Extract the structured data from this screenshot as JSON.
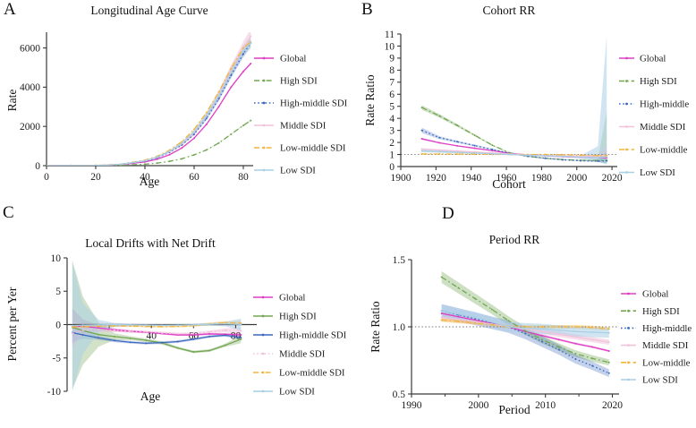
{
  "figure": {
    "background": "#ffffff",
    "text_color": "#1c1c1c",
    "axis_color": "#3a3a3a"
  },
  "chart_data": [
    {
      "panel": "A",
      "letter": "A",
      "type": "line",
      "title": "Longitudinal Age Curve",
      "xlabel": "Age",
      "ylabel": "Rate",
      "xlim": [
        0,
        84
      ],
      "ylim": [
        0,
        6800
      ],
      "xticks": [
        0,
        20,
        40,
        60,
        80
      ],
      "yticks": [
        0,
        2000,
        4000,
        6000
      ],
      "ytick_labels": [
        "0",
        "2000",
        "4000",
        "6000"
      ],
      "legend_position": "right",
      "legend": [
        "Global",
        "High SDI",
        "High-middle SDI",
        "Middle SDI",
        "Low-middle SDI",
        "Low SDI"
      ],
      "x": [
        0,
        10,
        20,
        30,
        40,
        45,
        50,
        55,
        60,
        65,
        70,
        75,
        80,
        83
      ],
      "series": [
        {
          "name": "Global",
          "color": "#DE3FC4",
          "dash": "solid",
          "band_rel": 0.012,
          "y": [
            2,
            3,
            10,
            50,
            190,
            330,
            560,
            900,
            1400,
            2100,
            3000,
            4000,
            4800,
            5200
          ]
        },
        {
          "name": "High SDI",
          "color": "#73A653",
          "dash": "dashdot",
          "band_rel": 0.02,
          "y": [
            1,
            2,
            5,
            20,
            75,
            130,
            220,
            350,
            550,
            800,
            1150,
            1600,
            2050,
            2300
          ]
        },
        {
          "name": "High-middle SDI",
          "color": "#3C68BE",
          "dash": "dotted",
          "band_rel": 0.03,
          "band_alpha": 0.3,
          "y": [
            2,
            3,
            12,
            60,
            230,
            400,
            680,
            1050,
            1600,
            2400,
            3400,
            4600,
            5700,
            6250
          ]
        },
        {
          "name": "Middle SDI",
          "color": "#F1C2DA",
          "dash": "solid",
          "band_rel": 0.055,
          "band_alpha": 0.55,
          "y": [
            2,
            3,
            13,
            65,
            250,
            430,
            720,
            1120,
            1700,
            2550,
            3600,
            4850,
            6000,
            6600
          ]
        },
        {
          "name": "Low-middle SDI",
          "color": "#F2B53D",
          "dash": "dashdot",
          "band_rel": 0.02,
          "y": [
            3,
            5,
            16,
            75,
            280,
            480,
            790,
            1220,
            1850,
            2700,
            3750,
            4950,
            6000,
            6300
          ]
        },
        {
          "name": "Low SDI",
          "color": "#A9CFE5",
          "dash": "solid",
          "band_rel": 0.045,
          "band_alpha": 0.5,
          "y": [
            2,
            3,
            13,
            65,
            250,
            440,
            730,
            1140,
            1720,
            2550,
            3550,
            4750,
            5850,
            6250
          ]
        }
      ]
    },
    {
      "panel": "B",
      "letter": "B",
      "type": "line",
      "title": "Cohort RR",
      "xlabel": "Cohort",
      "ylabel": "Rate Ratio",
      "xlim": [
        1900,
        2023
      ],
      "ylim": [
        0,
        11
      ],
      "ref_y": 1,
      "xticks": [
        1900,
        1920,
        1940,
        1960,
        1980,
        2000,
        2020
      ],
      "yticks": [
        0,
        1,
        2,
        3,
        4,
        5,
        6,
        7,
        8,
        9,
        10,
        11
      ],
      "ytick_labels": [
        "0",
        "1",
        "2",
        "3",
        "4",
        "5",
        "6",
        "7",
        "8",
        "9",
        "10",
        "11"
      ],
      "legend_position": "right",
      "legend": [
        "Global",
        "High SDI",
        "High-middle",
        "Middle SDI",
        "Low-middle",
        "Low SDI"
      ],
      "x": [
        1912,
        1922,
        1932,
        1942,
        1952,
        1962,
        1972,
        1982,
        1992,
        2002,
        2012,
        2017
      ],
      "series": [
        {
          "name": "Global",
          "color": "#DE3FC4",
          "dash": "solid",
          "y": [
            2.3,
            1.97,
            1.72,
            1.52,
            1.32,
            1.1,
            0.96,
            0.88,
            0.82,
            0.77,
            0.72,
            0.73
          ],
          "band_upper": [
            2.38,
            2.02,
            1.76,
            1.56,
            1.35,
            1.13,
            0.99,
            0.91,
            0.85,
            0.8,
            0.77,
            0.88
          ],
          "band_lower": [
            2.22,
            1.92,
            1.68,
            1.48,
            1.29,
            1.07,
            0.93,
            0.85,
            0.79,
            0.74,
            0.66,
            0.6
          ]
        },
        {
          "name": "High SDI",
          "color": "#73A653",
          "dash": "dashdot",
          "band_alpha": 0.35,
          "y": [
            4.9,
            4.2,
            3.42,
            2.6,
            1.77,
            1.13,
            0.85,
            0.69,
            0.58,
            0.52,
            0.5,
            0.52
          ],
          "band_upper": [
            5.08,
            4.35,
            3.53,
            2.68,
            1.82,
            1.17,
            0.89,
            0.72,
            0.61,
            0.56,
            0.62,
            4.6
          ],
          "band_lower": [
            4.72,
            4.05,
            3.31,
            2.52,
            1.72,
            1.09,
            0.81,
            0.66,
            0.55,
            0.48,
            0.42,
            0.28
          ]
        },
        {
          "name": "High-middle",
          "color": "#3C68BE",
          "dash": "dotted",
          "band_alpha": 0.28,
          "y": [
            3.0,
            2.4,
            2.06,
            1.74,
            1.42,
            1.1,
            0.86,
            0.69,
            0.56,
            0.48,
            0.45,
            0.47
          ],
          "band_upper": [
            3.22,
            2.52,
            2.15,
            1.81,
            1.47,
            1.13,
            0.9,
            0.72,
            0.59,
            0.51,
            0.53,
            1.25
          ],
          "band_lower": [
            2.78,
            2.28,
            1.97,
            1.67,
            1.37,
            1.07,
            0.82,
            0.66,
            0.53,
            0.45,
            0.37,
            0.25
          ]
        },
        {
          "name": "Middle SDI",
          "color": "#F1C2DA",
          "dash": "solid",
          "band_alpha": 0.5,
          "y": [
            1.45,
            1.37,
            1.29,
            1.21,
            1.13,
            1.05,
            0.98,
            0.92,
            0.88,
            0.85,
            0.88,
            0.95
          ],
          "band_upper": [
            1.52,
            1.42,
            1.33,
            1.25,
            1.16,
            1.08,
            1.01,
            0.95,
            0.9,
            0.88,
            0.98,
            1.9
          ],
          "band_lower": [
            1.38,
            1.32,
            1.25,
            1.17,
            1.1,
            1.02,
            0.95,
            0.89,
            0.86,
            0.82,
            0.78,
            0.58
          ]
        },
        {
          "name": "Low-middle",
          "color": "#F2B53D",
          "dash": "dashdot",
          "band_alpha": 0.35,
          "y": [
            1.05,
            1.04,
            1.03,
            1.02,
            1.01,
            1.0,
            1.0,
            1.0,
            0.98,
            0.95,
            0.91,
            0.9
          ],
          "band_upper": [
            1.09,
            1.07,
            1.06,
            1.05,
            1.03,
            1.02,
            1.02,
            1.02,
            1.0,
            0.98,
            0.97,
            1.1
          ],
          "band_lower": [
            1.01,
            1.01,
            1.0,
            0.99,
            0.99,
            0.98,
            0.98,
            0.98,
            0.96,
            0.92,
            0.85,
            0.72
          ]
        },
        {
          "name": "Low SDI",
          "color": "#A9CFE5",
          "dash": "solid",
          "band_alpha": 0.55,
          "y": [
            1.3,
            1.24,
            1.18,
            1.12,
            1.06,
            1.0,
            0.94,
            0.89,
            0.84,
            0.78,
            0.72,
            0.8
          ],
          "band_upper": [
            1.42,
            1.34,
            1.26,
            1.18,
            1.11,
            1.05,
            0.98,
            0.93,
            0.89,
            0.87,
            1.7,
            10.9
          ],
          "band_lower": [
            1.18,
            1.14,
            1.1,
            1.06,
            1.01,
            0.95,
            0.9,
            0.85,
            0.79,
            0.68,
            0.4,
            0.18
          ]
        }
      ]
    },
    {
      "panel": "C",
      "letter": "C",
      "type": "line",
      "title": "Local Drifts with Net Drift",
      "xlabel": "Age",
      "ylabel": "Percent per Yer",
      "xlim": [
        0,
        90
      ],
      "ylim": [
        -10,
        10
      ],
      "x_axis_at": 0,
      "xticks": [
        20,
        40,
        60,
        80
      ],
      "xtick_labels": [
        "",
        "40",
        "60",
        "80"
      ],
      "yticks": [
        -10,
        -5,
        0,
        5,
        10
      ],
      "ytick_labels": [
        "-10",
        "-5",
        "0",
        "5",
        "10"
      ],
      "legend_position": "right",
      "legend": [
        "Global",
        "High SDI",
        "High-middle SDI",
        "Middle SDI",
        "Low-middle SDI",
        "Low SDI"
      ],
      "x": [
        2.5,
        7.5,
        15,
        22.5,
        30,
        37.5,
        45,
        52.5,
        60,
        67.5,
        75,
        82.5
      ],
      "series": [
        {
          "name": "Global",
          "color": "#DE3FC4",
          "dash": "solid",
          "band_alpha": 0.3,
          "y": [
            -0.2,
            -0.25,
            -0.5,
            -0.8,
            -1.0,
            -1.15,
            -1.35,
            -1.55,
            -1.55,
            -1.4,
            -1.45,
            -1.55
          ],
          "band_upper": [
            2.4,
            0.8,
            -0.1,
            -0.55,
            -0.8,
            -1.0,
            -1.2,
            -1.4,
            -1.4,
            -1.25,
            -1.3,
            -1.25
          ],
          "band_lower": [
            -3.0,
            -1.4,
            -0.9,
            -1.05,
            -1.2,
            -1.3,
            -1.5,
            -1.7,
            -1.7,
            -1.55,
            -1.6,
            -1.85
          ]
        },
        {
          "name": "High SDI",
          "color": "#73A653",
          "dash": "solid",
          "band_alpha": 0.32,
          "y": [
            -0.4,
            -0.9,
            -1.5,
            -1.8,
            -2.05,
            -2.35,
            -2.75,
            -3.5,
            -4.1,
            -3.9,
            -3.1,
            -2.2
          ],
          "band_upper": [
            9.6,
            4.2,
            0.3,
            -1.3,
            -1.75,
            -2.1,
            -2.5,
            -3.3,
            -3.9,
            -3.7,
            -2.85,
            -1.6
          ],
          "band_lower": [
            -9.7,
            -6.0,
            -3.3,
            -2.3,
            -2.35,
            -2.6,
            -3.0,
            -3.7,
            -4.3,
            -4.1,
            -3.35,
            -2.8
          ]
        },
        {
          "name": "High-middle SDI",
          "color": "#3C68BE",
          "dash": "solid",
          "band_alpha": 0.25,
          "y": [
            -1.2,
            -1.55,
            -2.0,
            -2.4,
            -2.65,
            -2.8,
            -2.7,
            -2.55,
            -2.2,
            -1.8,
            -1.6,
            -1.95
          ],
          "band_upper": [
            -0.2,
            -1.0,
            -1.7,
            -2.15,
            -2.45,
            -2.6,
            -2.5,
            -2.35,
            -2.0,
            -1.6,
            -1.4,
            -1.6
          ],
          "band_lower": [
            -2.6,
            -2.1,
            -2.3,
            -2.65,
            -2.85,
            -3.0,
            -2.9,
            -2.75,
            -2.4,
            -2.0,
            -1.8,
            -2.3
          ]
        },
        {
          "name": "Middle SDI",
          "color": "#F1C2DA",
          "dash": "dotted",
          "band_alpha": 0.5,
          "y": [
            -1.3,
            -0.85,
            -0.75,
            -0.85,
            -1.0,
            -1.1,
            -1.25,
            -1.4,
            -1.35,
            -1.1,
            -0.85,
            -0.95
          ],
          "band_upper": [
            0.6,
            -0.2,
            -0.4,
            -0.6,
            -0.8,
            -0.9,
            -1.05,
            -1.2,
            -1.15,
            -0.9,
            -0.55,
            -0.4
          ],
          "band_lower": [
            -3.4,
            -1.6,
            -1.1,
            -1.1,
            -1.2,
            -1.3,
            -1.45,
            -1.6,
            -1.55,
            -1.3,
            -1.15,
            -1.5
          ]
        },
        {
          "name": "Low-middle SDI",
          "color": "#F2B53D",
          "dash": "dashdot",
          "band_alpha": 0.4,
          "y": [
            -0.35,
            -0.3,
            -0.25,
            -0.2,
            -0.22,
            -0.27,
            -0.3,
            -0.26,
            -0.15,
            0.1,
            0.28,
            0.2
          ],
          "band_upper": [
            0.05,
            -0.1,
            -0.08,
            -0.06,
            -0.08,
            -0.12,
            -0.16,
            -0.1,
            0.03,
            0.3,
            0.52,
            0.55
          ],
          "band_lower": [
            -0.75,
            -0.5,
            -0.42,
            -0.34,
            -0.36,
            -0.42,
            -0.44,
            -0.42,
            -0.33,
            -0.1,
            0.04,
            -0.15
          ]
        },
        {
          "name": "Low SDI",
          "color": "#A9CFE5",
          "dash": "solid",
          "band_alpha": 0.55,
          "y": [
            -0.15,
            -0.08,
            -0.03,
            0,
            -0.03,
            -0.07,
            -0.1,
            -0.08,
            -0.03,
            0.04,
            0.1,
            0.02
          ],
          "band_upper": [
            9.3,
            3.2,
            0.7,
            0.25,
            0.12,
            0.06,
            0.04,
            0.05,
            0.1,
            0.2,
            0.42,
            0.9
          ],
          "band_lower": [
            -10,
            -4.4,
            -1.1,
            -0.35,
            -0.22,
            -0.22,
            -0.26,
            -0.24,
            -0.18,
            -0.16,
            -0.25,
            -0.9
          ]
        }
      ]
    },
    {
      "panel": "D",
      "letter": "D",
      "type": "line",
      "title": "Period RR",
      "xlabel": "Period",
      "ylabel": "Rate Ratio",
      "xlim": [
        1990,
        2021
      ],
      "ylim": [
        0.5,
        1.5
      ],
      "ref_y": 1,
      "xticks": [
        1990,
        2000,
        2010,
        2020
      ],
      "minor_xticks": [
        1995,
        2005,
        2015
      ],
      "yticks": [
        0.5,
        1.0,
        1.5
      ],
      "ytick_labels": [
        "0.5",
        "1.0",
        "1.5"
      ],
      "legend_position": "right",
      "legend": [
        "Global",
        "High SDI",
        "High-middle",
        "Middle SDI",
        "Low-middle",
        "Low SDI"
      ],
      "x": [
        1994.5,
        1997,
        1999.5,
        2002,
        2004.5,
        2007,
        2009.5,
        2012,
        2014.5,
        2017,
        2019.5
      ],
      "series": [
        {
          "name": "Global",
          "color": "#DE3FC4",
          "dash": "solid",
          "band_rel": 0.01,
          "y": [
            1.1,
            1.075,
            1.05,
            1.025,
            1.0,
            0.965,
            0.935,
            0.905,
            0.875,
            0.85,
            0.82
          ]
        },
        {
          "name": "High SDI",
          "color": "#73A653",
          "dash": "dashdot",
          "band_rel": 0.032,
          "band_alpha": 0.35,
          "y": [
            1.37,
            1.29,
            1.21,
            1.13,
            1.045,
            0.97,
            0.905,
            0.85,
            0.8,
            0.765,
            0.735
          ]
        },
        {
          "name": "High-middle",
          "color": "#3C68BE",
          "dash": "dotted",
          "band_rel": 0.045,
          "band_alpha": 0.3,
          "y": [
            1.12,
            1.09,
            1.06,
            1.03,
            1.0,
            0.95,
            0.89,
            0.83,
            0.76,
            0.71,
            0.655
          ]
        },
        {
          "name": "Middle SDI",
          "color": "#F1C2DA",
          "dash": "solid",
          "band_rel": 0.022,
          "band_alpha": 0.55,
          "y": [
            1.07,
            1.055,
            1.04,
            1.02,
            1.0,
            0.985,
            0.965,
            0.945,
            0.925,
            0.905,
            0.885
          ]
        },
        {
          "name": "Low-middle",
          "color": "#F2B53D",
          "dash": "dashdot",
          "band_rel": 0.013,
          "band_alpha": 0.45,
          "y": [
            1.05,
            1.04,
            1.03,
            1.015,
            1.0,
            1.0,
            1.0,
            1.0,
            1.0,
            0.995,
            0.985
          ]
        },
        {
          "name": "Low SDI",
          "color": "#A9CFE5",
          "dash": "solid",
          "band_rel": 0.038,
          "band_alpha": 0.55,
          "y": [
            1.12,
            1.095,
            1.07,
            1.035,
            1.0,
            0.99,
            0.985,
            0.975,
            0.965,
            0.96,
            0.955
          ]
        }
      ]
    }
  ]
}
